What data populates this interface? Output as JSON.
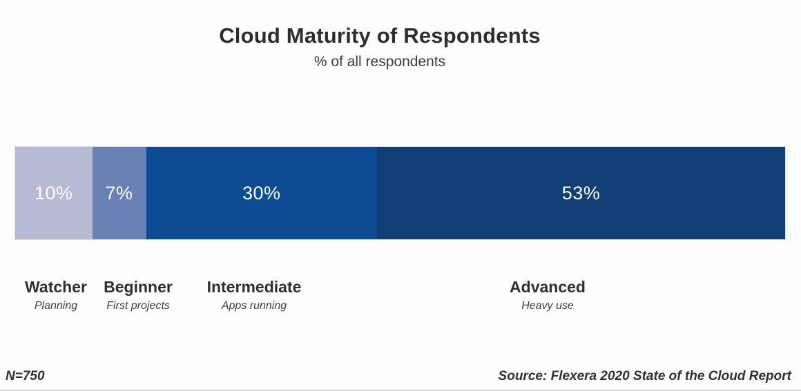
{
  "chart_data": {
    "type": "bar",
    "orientation": "horizontal-stacked",
    "title": "Cloud Maturity of Respondents",
    "subtitle": "% of all respondents",
    "unit": "%",
    "xlim": [
      0,
      100
    ],
    "grid": false,
    "legend": false,
    "segments": [
      {
        "label": "Watcher",
        "description": "Planning",
        "value": 10,
        "value_label": "10%",
        "color": "#b6bbd3"
      },
      {
        "label": "Beginner",
        "description": "First projects",
        "value": 7,
        "value_label": "7%",
        "color": "#6980b4"
      },
      {
        "label": "Intermediate",
        "description": "Apps running",
        "value": 30,
        "value_label": "30%",
        "color": "#0d4c93"
      },
      {
        "label": "Advanced",
        "description": "Heavy use",
        "value": 53,
        "value_label": "53%",
        "color": "#113e75"
      }
    ],
    "sample_size": "N=750",
    "source": "Source: Flexera 2020 State of the Cloud Report",
    "value_text_color": "#ffffff"
  }
}
